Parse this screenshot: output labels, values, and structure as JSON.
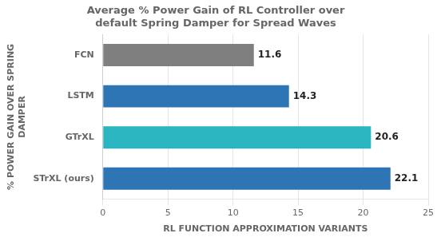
{
  "chart_data": {
    "type": "bar",
    "orientation": "horizontal",
    "title": "Average % Power Gain of RL Controller over\ndefault Spring Damper for Spread Waves",
    "xlabel": "RL FUNCTION APPROXIMATION VARIANTS",
    "ylabel": "% POWER GAIN OVER SPRING\nDAMPER",
    "categories": [
      "STrXL (ours)",
      "GTrXL",
      "LSTM",
      "FCN"
    ],
    "values": [
      22.1,
      20.6,
      14.3,
      11.6
    ],
    "colors": [
      "#2E75B6",
      "#2BB5C0",
      "#2E75B6",
      "#7F7F7F"
    ],
    "xlim": [
      0,
      25
    ],
    "xticks": [
      0,
      5,
      10,
      15,
      20,
      25
    ],
    "grid": true,
    "data_labels": true
  }
}
